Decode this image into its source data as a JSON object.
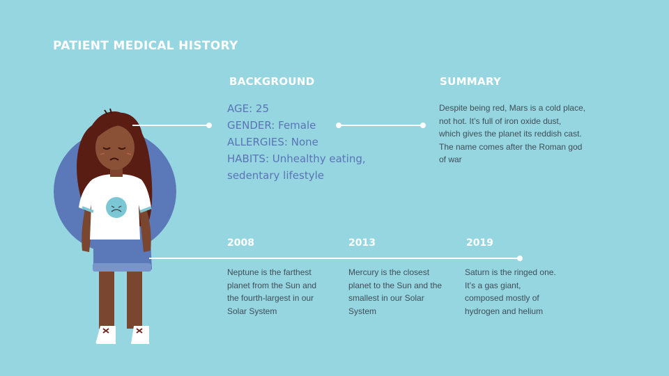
{
  "title": "PATIENT MEDICAL HISTORY",
  "background": {
    "heading": "BACKGROUND",
    "age": "AGE: 25",
    "gender": "GENDER: Female",
    "allergies": "ALLERGIES: None",
    "habits_line1": "HABITS: Unhealthy eating,",
    "habits_line2": "sedentary lifestyle"
  },
  "summary": {
    "heading": "SUMMARY",
    "lines": [
      "Despite being red, Mars is a cold place,",
      "not hot. It’s full of iron oxide dust,",
      "which gives the planet its reddish cast.",
      "The name comes after the Roman god",
      "of war"
    ]
  },
  "timeline": [
    {
      "year": "2008",
      "lines": [
        "Neptune is the farthest",
        "planet from the Sun and",
        "the fourth-largest  in our",
        "Solar System"
      ]
    },
    {
      "year": "2013",
      "lines": [
        "Mercury is the closest",
        "planet to the Sun and the",
        "smallest in our Solar",
        "System"
      ]
    },
    {
      "year": "2019",
      "lines": [
        "Saturn is the ringed one.",
        "It’s a gas giant,",
        "composed mostly of",
        "hydrogen and helium"
      ]
    }
  ],
  "colors": {
    "background": "#96d6e0",
    "accent": "#5a74b6",
    "circle": "#5b79b8",
    "text": "#3f4e57"
  }
}
